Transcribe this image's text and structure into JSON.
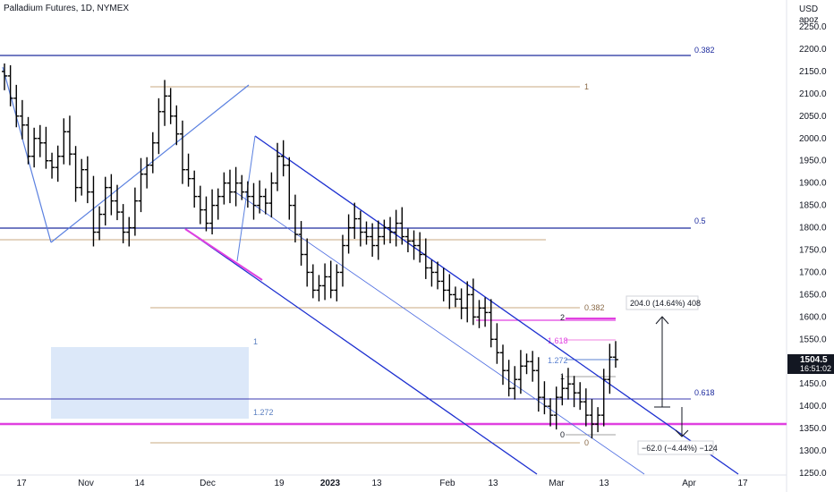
{
  "header": {
    "title": "Palladium Futures, 1D, NYMEX"
  },
  "price_axis": {
    "currency": "USD",
    "unit": "apoz",
    "current_price": "1504.5",
    "countdown": "16:51:02"
  },
  "chart_data": {
    "type": "ohlc",
    "title": "Palladium Futures, 1D, NYMEX",
    "ylabel": "USD",
    "ylim": [
      1250,
      2270
    ],
    "y_ticks": [
      "2250.0",
      "2200.0",
      "2150.0",
      "2100.0",
      "2050.0",
      "2000.0",
      "1950.0",
      "1900.0",
      "1850.0",
      "1800.0",
      "1750.0",
      "1700.0",
      "1650.0",
      "1600.0",
      "1550.0",
      "1500.0",
      "1450.0",
      "1400.0",
      "1350.0",
      "1300.0",
      "1250.0"
    ],
    "x_ticks": [
      "17",
      "Nov",
      "14",
      "Dec",
      "19",
      "2023",
      "13",
      "Feb",
      "13",
      "Mar",
      "13",
      "Apr",
      "17"
    ],
    "last_price": 1504.5,
    "series_close": [
      2140,
      2090,
      2050,
      2030,
      1960,
      2000,
      1990,
      1950,
      1935,
      1960,
      2015,
      1965,
      1890,
      1930,
      1880,
      1790,
      1830,
      1890,
      1860,
      1835,
      1790,
      1800,
      1860,
      1920,
      1940,
      1990,
      2060,
      2095,
      2050,
      2010,
      1930,
      1910,
      1870,
      1840,
      1810,
      1850,
      1870,
      1900,
      1880,
      1900,
      1880,
      1870,
      1850,
      1870,
      1855,
      1900,
      1960,
      1940,
      1850,
      1785,
      1740,
      1700,
      1660,
      1670,
      1690,
      1660,
      1700,
      1760,
      1800,
      1820,
      1790,
      1780,
      1760,
      1780,
      1800,
      1790,
      1810,
      1780,
      1770,
      1760,
      1740,
      1710,
      1700,
      1680,
      1660,
      1650,
      1640,
      1620,
      1650,
      1600,
      1620,
      1610,
      1550,
      1520,
      1480,
      1440,
      1460,
      1490,
      1500,
      1480,
      1420,
      1400,
      1380,
      1420,
      1440,
      1450,
      1430,
      1410,
      1380,
      1360,
      1380,
      1460,
      1510,
      1504.5
    ],
    "fib_levels": [
      {
        "label": "0.382",
        "price": 2182
      },
      {
        "label": "0.5",
        "price": 1798
      },
      {
        "label": "0.618",
        "price": 1415
      },
      {
        "label": "1",
        "price": 2113
      },
      {
        "label": "0.382",
        "price": 1619
      },
      {
        "label": "0",
        "price": 1315
      },
      {
        "label": "2",
        "price": 1597
      },
      {
        "label": "1.618",
        "price": 1551
      },
      {
        "label": "1.272",
        "price": 1508
      },
      {
        "label": "1",
        "price": 1472
      },
      {
        "label": "0",
        "price": 1341
      },
      {
        "label": "1",
        "price": 1528
      },
      {
        "label": "1.272",
        "price": 1388
      }
    ],
    "measures": [
      {
        "label": "204.0 (14.64%) 408",
        "from": 1395,
        "to": 1599
      },
      {
        "label": "−62.0 (−4.44%) −124",
        "from": 1395,
        "to": 1333
      }
    ],
    "colors": {
      "bars": "#000000",
      "fib_blue": "#1e2c9e",
      "fib_brown": "#a07850",
      "magenta": "#e040e0",
      "channel": "#1c2fd0",
      "zone": "#d6e4f8",
      "price_tag": "#131722"
    }
  }
}
